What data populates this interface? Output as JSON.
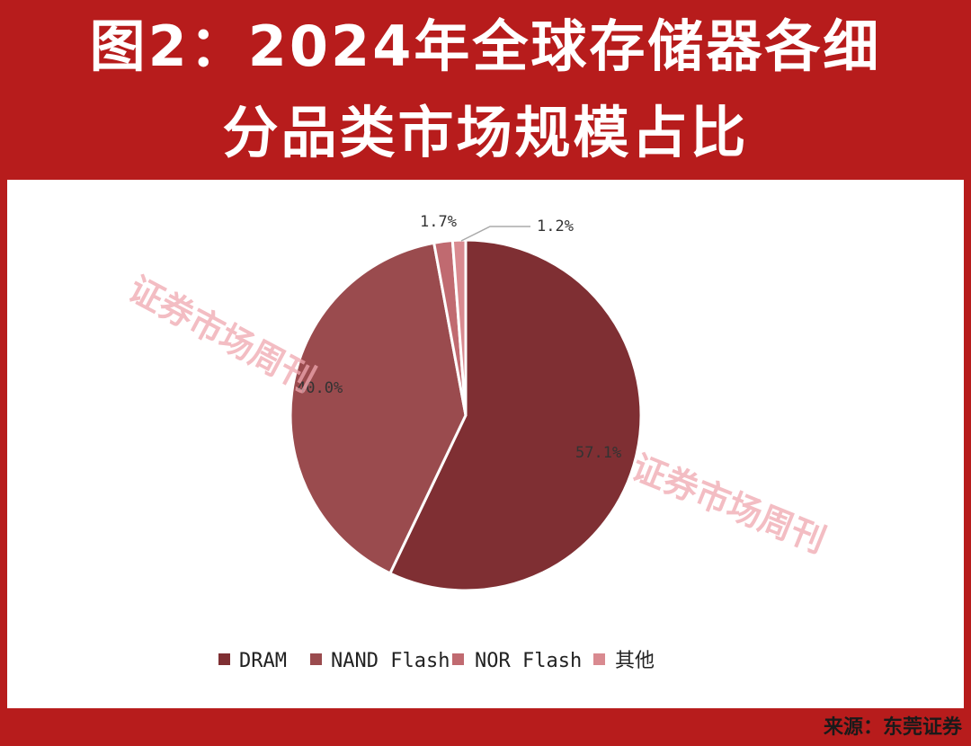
{
  "header": {
    "title_line1": "图2：2024年全球存储器各细",
    "title_line2": "分品类市场规模占比"
  },
  "footer": {
    "source": "来源：东莞证券"
  },
  "watermark": "证券市场周刊",
  "colors": {
    "frame": "#b71c1c",
    "DRAM": "#7f2f33",
    "NAND Flash": "#9a4b4e",
    "NOR Flash": "#c06a70",
    "其他": "#d98a90"
  },
  "chart_data": {
    "type": "pie",
    "title": "",
    "categories": [
      "DRAM",
      "NAND Flash",
      "NOR Flash",
      "其他"
    ],
    "values": [
      57.1,
      40.0,
      1.7,
      1.2
    ],
    "data_labels": [
      "57.1%",
      "40.0%",
      "1.7%",
      "1.2%"
    ],
    "start": "12 o'clock, clockwise",
    "legend": "bottom"
  }
}
